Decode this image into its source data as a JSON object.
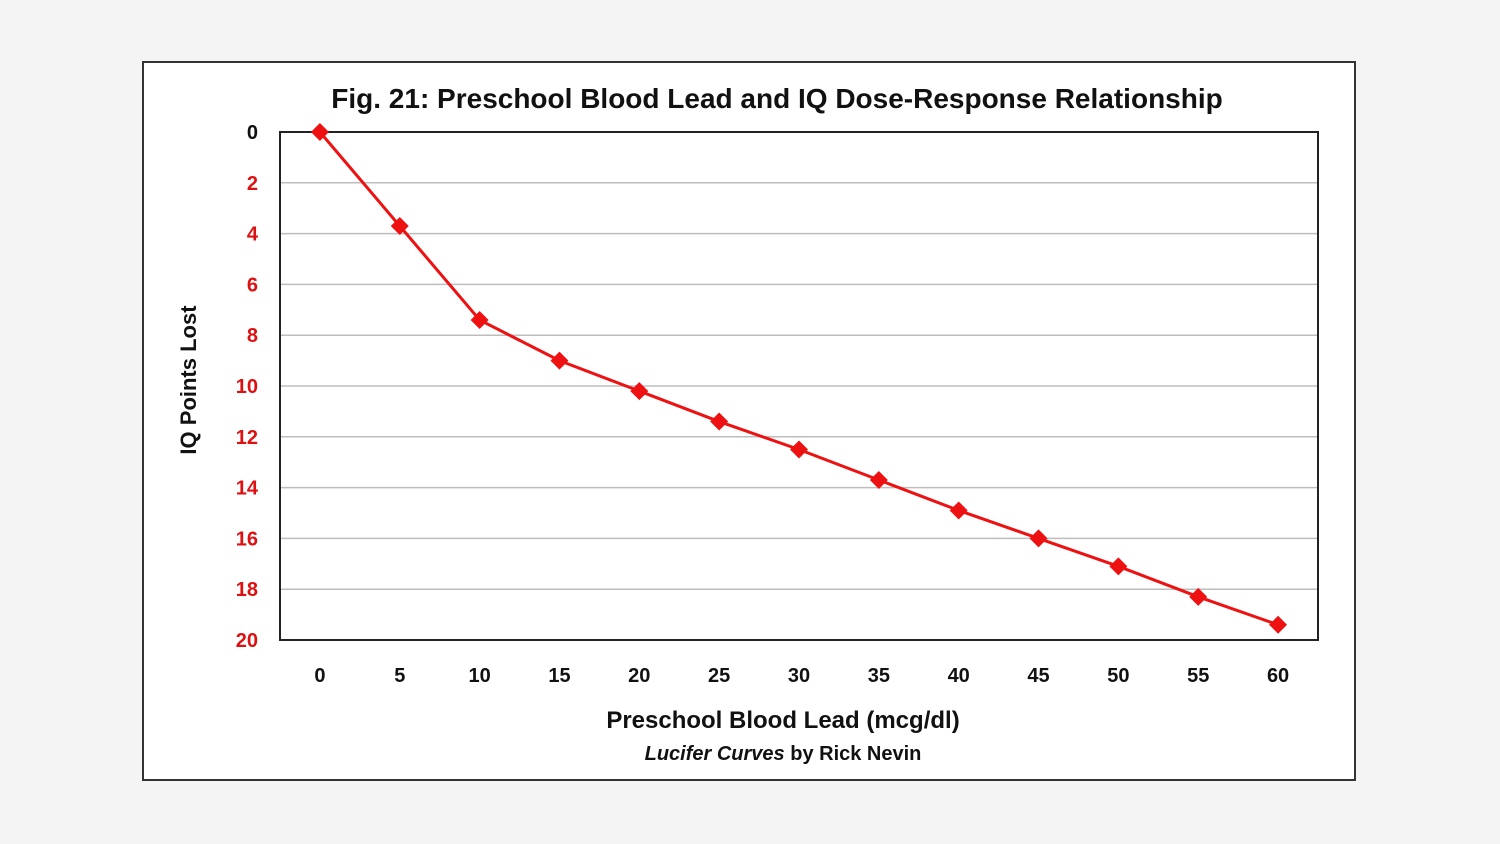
{
  "chart_data": {
    "type": "line",
    "title": "Fig. 21: Preschool Blood Lead and IQ Dose-Response Relationship",
    "xlabel": "Preschool Blood Lead (mcg/dl)",
    "ylabel": "IQ Points Lost",
    "credit_italic": "Lucifer Curves",
    "credit_rest": " by Rick Nevin",
    "x": [
      0,
      5,
      10,
      15,
      20,
      25,
      30,
      35,
      40,
      45,
      50,
      55,
      60
    ],
    "series": [
      {
        "values": [
          0,
          3.7,
          7.4,
          9.0,
          10.2,
          11.4,
          12.5,
          13.7,
          14.9,
          16.0,
          17.1,
          18.3,
          19.4
        ]
      }
    ],
    "xticks": [
      "0",
      "5",
      "10",
      "15",
      "20",
      "25",
      "30",
      "35",
      "40",
      "45",
      "50",
      "55",
      "60"
    ],
    "yticks": [
      "0",
      "2",
      "4",
      "6",
      "8",
      "10",
      "12",
      "14",
      "16",
      "18",
      "20"
    ],
    "ylim": [
      0,
      20
    ],
    "xlim": [
      -2.5,
      62.5
    ],
    "y_inverted": true,
    "grid": "horizontal",
    "legend": "none",
    "colors": {
      "series": "#ee1111",
      "ytick_zero": "#111111",
      "ytick": "#dd1111"
    }
  }
}
